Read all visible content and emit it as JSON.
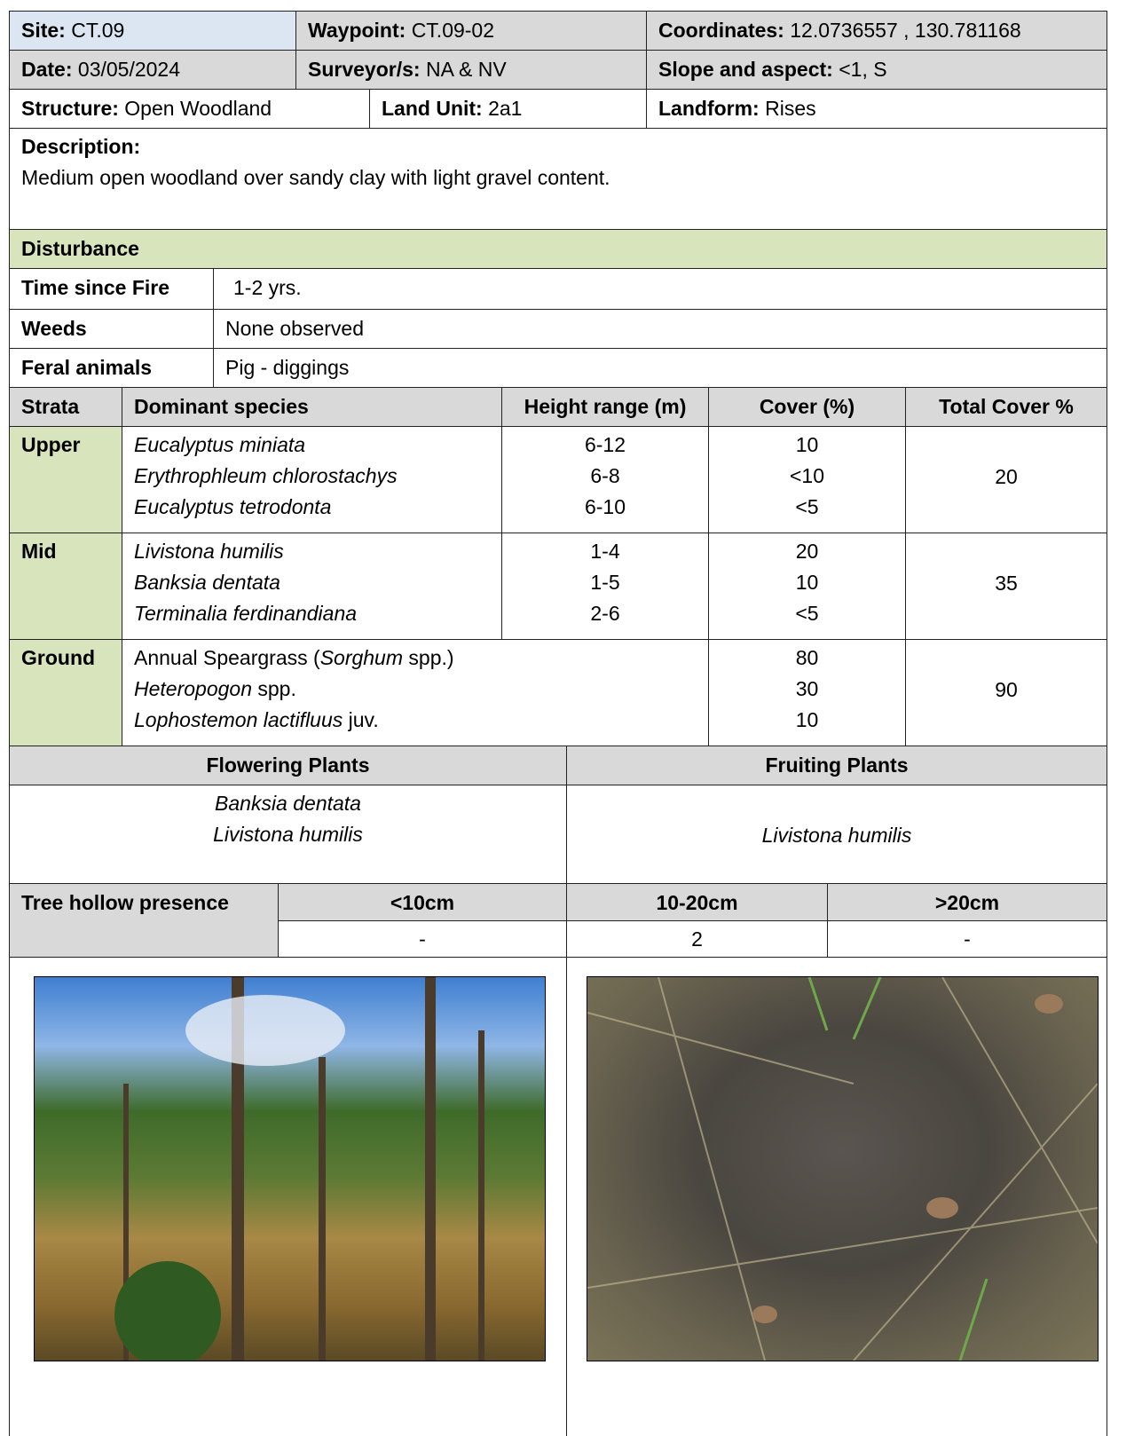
{
  "header": {
    "site": {
      "label": "Site:",
      "value": "CT.09"
    },
    "waypoint": {
      "label": "Waypoint:",
      "value": "CT.09-02"
    },
    "coordinates": {
      "label": "Coordinates:",
      "value": "12.0736557 , 130.781168"
    },
    "date": {
      "label": "Date:",
      "value": "03/05/2024"
    },
    "surveyors": {
      "label": "Surveyor/s:",
      "value": "NA & NV"
    },
    "slope": {
      "label": "Slope and aspect:",
      "value": "<1, S"
    },
    "structure": {
      "label": "Structure:",
      "value": "Open Woodland"
    },
    "land_unit": {
      "label": "Land Unit:",
      "value": "2a1"
    },
    "landform": {
      "label": "Landform:",
      "value": "Rises"
    }
  },
  "description": {
    "label": "Description:",
    "text": "Medium open woodland over sandy clay with light gravel content."
  },
  "disturbance": {
    "title": "Disturbance",
    "rows": [
      [
        "Time since Fire",
        "1-2 yrs."
      ],
      [
        "Weeds",
        "None observed"
      ],
      [
        "Feral animals",
        "Pig - diggings"
      ]
    ]
  },
  "strata": {
    "columns": [
      "Strata",
      "Dominant species",
      "Height range (m)",
      "Cover (%)",
      "Total Cover %"
    ],
    "rows": [
      {
        "stratum": "Upper",
        "species": [
          [
            "Eucalyptus miniata"
          ],
          [
            "Erythrophleum chlorostachys"
          ],
          [
            "Eucalyptus tetrodonta"
          ]
        ],
        "heights": [
          "6-12",
          "6-8",
          "6-10"
        ],
        "covers": [
          "10",
          "<10",
          "<5"
        ],
        "total": "20"
      },
      {
        "stratum": "Mid",
        "species": [
          [
            "Livistona humilis"
          ],
          [
            "Banksia dentata"
          ],
          [
            "Terminalia ferdinandiana"
          ]
        ],
        "heights": [
          "1-4",
          "1-5",
          "2-6"
        ],
        "covers": [
          "20",
          "10",
          "<5"
        ],
        "total": "35"
      },
      {
        "stratum": "Ground",
        "species": [
          [
            "Annual Speargrass (",
            "Sorghum",
            " spp.)"
          ],
          [
            "Heteropogon",
            " spp."
          ],
          [
            "Lophostemon lactifluus",
            " juv."
          ]
        ],
        "covers": [
          "80",
          "30",
          "10"
        ],
        "total": "90"
      }
    ]
  },
  "plants": {
    "flowering": {
      "title": "Flowering Plants",
      "species": [
        "Banksia dentata",
        "Livistona humilis"
      ]
    },
    "fruiting": {
      "title": "Fruiting Plants",
      "species": [
        "Livistona humilis"
      ]
    }
  },
  "tree_hollows": {
    "label": "Tree hollow presence",
    "columns": [
      "<10cm",
      "10-20cm",
      ">20cm"
    ],
    "values": [
      "-",
      "2",
      "-"
    ]
  }
}
